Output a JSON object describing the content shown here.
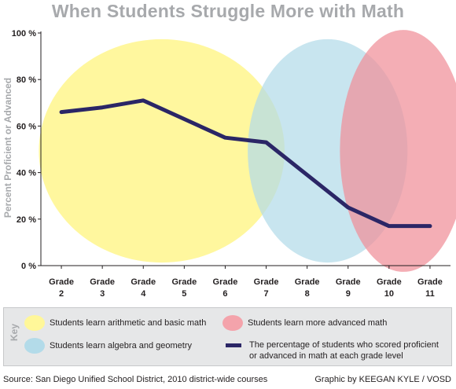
{
  "chart_data": {
    "type": "line",
    "title": "When Students Struggle More with Math",
    "ylabel": "Percent Proficient or Advanced",
    "xlabel": "",
    "ylim": [
      0,
      100
    ],
    "yticks": [
      "0 %",
      "20 %",
      "40 %",
      "60 %",
      "80 %",
      "100 %"
    ],
    "ytick_values": [
      0,
      20,
      40,
      60,
      80,
      100
    ],
    "categories": [
      "Grade 2",
      "Grade 3",
      "Grade 4",
      "Grade 5",
      "Grade 6",
      "Grade 7",
      "Grade 8",
      "Grade 9",
      "Grade 10",
      "Grade 11"
    ],
    "category_lines": [
      [
        "Grade",
        "2"
      ],
      [
        "Grade",
        "3"
      ],
      [
        "Grade",
        "4"
      ],
      [
        "Grade",
        "5"
      ],
      [
        "Grade",
        "6"
      ],
      [
        "Grade",
        "7"
      ],
      [
        "Grade",
        "8"
      ],
      [
        "Grade",
        "9"
      ],
      [
        "Grade",
        "10"
      ],
      [
        "Grade",
        "11"
      ]
    ],
    "values": [
      66,
      68,
      71,
      63,
      55,
      53,
      39,
      25,
      17,
      17
    ],
    "line_color": "#2b2666",
    "grid": false,
    "regions": [
      {
        "label": "Students learn arithmetic and basic math",
        "color": "#fff799",
        "from_grade": "Grade 2",
        "to_grade": "Grade 7"
      },
      {
        "label": "Students learn algebra and geometry",
        "color": "#b3dbe9",
        "from_grade": "Grade 7",
        "to_grade": "Grade 10"
      },
      {
        "label": "Students learn more advanced math",
        "color": "#f08f98",
        "from_grade": "Grade 9",
        "to_grade": "Grade 11"
      }
    ]
  },
  "key": {
    "title": "Key",
    "items": [
      {
        "label": "Students learn arithmetic and basic math",
        "color": "#fff799"
      },
      {
        "label": "Students learn more advanced math",
        "color": "#f4a3ab"
      },
      {
        "label": "Students learn algebra and geometry",
        "color": "#b3dbe9"
      },
      {
        "label": "The percentage of students who scored proficient or advanced in math at each grade level",
        "color": "#2b2666"
      }
    ]
  },
  "footer": {
    "source": "Source: San Diego Unified School District, 2010 district-wide courses",
    "credit": "Graphic by KEEGAN KYLE / VOSD"
  }
}
